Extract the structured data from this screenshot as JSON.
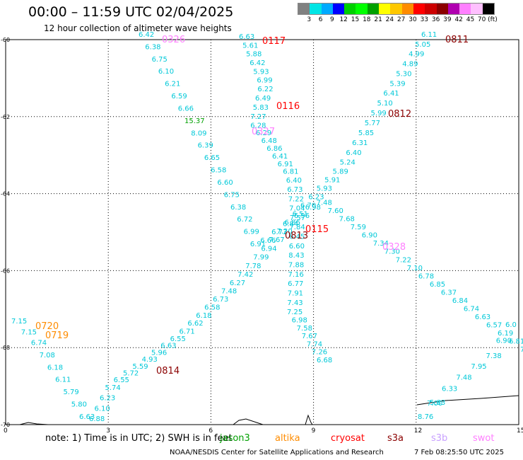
{
  "header": {
    "title": "00:00 – 11:59 UTC 02/04/2025",
    "subtitle": "12 hour collection of altimeter wave heights"
  },
  "legend": {
    "colors": [
      "#808080",
      "#00e5e5",
      "#00aaff",
      "#0000ff",
      "#00d000",
      "#00ff00",
      "#00a000",
      "#ffff00",
      "#ffc800",
      "#ff8c00",
      "#ff0000",
      "#cc0000",
      "#8b0000",
      "#b000b0",
      "#ff80ff",
      "#ffc0ff",
      "#000000"
    ],
    "labels": [
      "3",
      "6",
      "9",
      "12",
      "15",
      "18",
      "21",
      "24",
      "27",
      "30",
      "33",
      "36",
      "39",
      "42",
      "45",
      "70 (ft)"
    ]
  },
  "map": {
    "y_ticks": [
      "-60",
      "-62",
      "-64",
      "-66",
      "-68",
      "-70"
    ],
    "x_ticks": [
      "0",
      "3",
      "6",
      "9",
      "12",
      "15"
    ],
    "lat_range": [
      -70,
      -60
    ],
    "lon_range": [
      0,
      15
    ],
    "pass_labels": [
      {
        "text": "0326",
        "color": "#ff80ff"
      },
      {
        "text": "0117",
        "color": "#ff0000"
      },
      {
        "text": "0811",
        "color": "#8b0000"
      },
      {
        "text": "0116",
        "color": "#ff0000"
      },
      {
        "text": "0812",
        "color": "#8b0000"
      },
      {
        "text": "0327",
        "color": "#ff80ff"
      },
      {
        "text": "0813",
        "color": "#8b0000"
      },
      {
        "text": "0115",
        "color": "#ff0000"
      },
      {
        "text": "0328",
        "color": "#ff80ff"
      },
      {
        "text": "0720",
        "color": "#ff8c00"
      },
      {
        "text": "0719",
        "color": "#ff8c00"
      },
      {
        "text": "0814",
        "color": "#8b0000"
      }
    ],
    "wave_values": {
      "pass_0326": [
        "6.42",
        "6.38",
        "6.75",
        "6.10",
        "6.21",
        "6.59",
        "6.66",
        "15.37",
        "8.09",
        "6.39",
        "6.65",
        "6.58",
        "6.60",
        "6.75",
        "6.38",
        "6.72",
        "6.99",
        "6.91",
        "6.66",
        "6.73",
        "6.84",
        "6.96",
        "6.98",
        "7.48",
        "7.60",
        "7.68",
        "7.59",
        "6.90",
        "7.34",
        "7.30",
        "7.22",
        "7.10",
        "6.78",
        "6.85",
        "6.37",
        "6.84",
        "6.74",
        "6.63",
        "6.57",
        "6.19",
        "6.81",
        "7.9"
      ],
      "pass_0117": [
        "6.63",
        "5.61",
        "5.88",
        "6.42",
        "5.93",
        "6.99",
        "6.22",
        "6.49",
        "5.83",
        "7.27",
        "6.28",
        "6.29",
        "6.48",
        "6.86",
        "6.41",
        "6.91",
        "6.81",
        "6.40",
        "6.73",
        "7.22",
        "7.04",
        "7.57",
        "7.84",
        "6.45",
        "6.60",
        "8.43",
        "7.88",
        "7.16",
        "6.77",
        "7.91",
        "7.43",
        "7.25",
        "6.98",
        "7.58",
        "7.67",
        "7.74",
        "7.26",
        "6.68"
      ],
      "pass_0811": [
        "6.11",
        "5.05",
        "4.99",
        "4.89",
        "5.30",
        "5.39",
        "6.41",
        "5.10",
        "5.99",
        "5.77",
        "5.85",
        "6.31",
        "6.40",
        "5.24",
        "5.89",
        "5.91",
        "5.93",
        "6.23",
        "6.70",
        "6.51",
        "6.86",
        "7.20",
        "7.67",
        "6.94",
        "7.99",
        "7.78",
        "7.42",
        "6.27",
        "7.48",
        "6.73",
        "6.58",
        "6.18",
        "6.62",
        "6.71",
        "6.55",
        "6.63",
        "5.96",
        "4.93",
        "5.59",
        "5.72",
        "6.55",
        "5.74",
        "6.23",
        "6.10",
        "6.88"
      ],
      "pass_0720": [
        "7.15",
        "7.15",
        "6.74",
        "7.08",
        "6.18",
        "6.11",
        "5.79",
        "5.80",
        "6.63"
      ],
      "pass_0814": [
        "7.00",
        "8.76",
        "5.83",
        "6.33",
        "7.48",
        "7.95",
        "7.38",
        "6.90",
        "6.0"
      ]
    }
  },
  "footer": {
    "note": "note: 1) Time is in UTC; 2) SWH is in feet",
    "missions": [
      {
        "text": "jason3",
        "color": "#00a000"
      },
      {
        "text": "altika",
        "color": "#ff8c00"
      },
      {
        "text": "cryosat",
        "color": "#ff0000"
      },
      {
        "text": "s3a",
        "color": "#8b0000"
      },
      {
        "text": "s3b",
        "color": "#c8a0ff"
      },
      {
        "text": "swot",
        "color": "#ff80ff"
      }
    ],
    "credit": "NOAA/NESDIS Center for Satellite Applications and Research",
    "timestamp": "7 Feb 08:25:50 UTC 2025"
  }
}
